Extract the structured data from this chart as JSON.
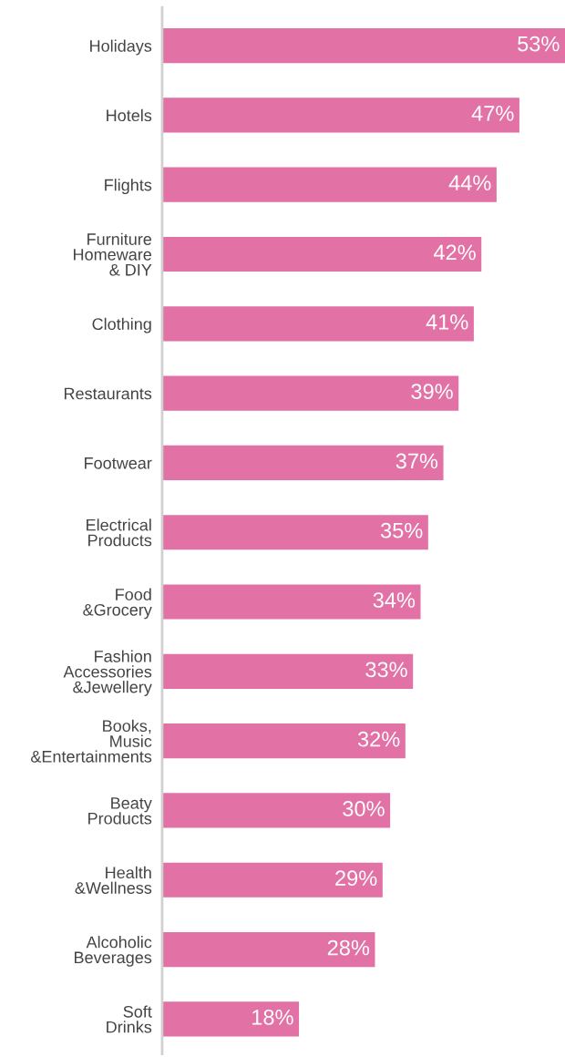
{
  "chart_data": {
    "type": "bar",
    "orientation": "horizontal",
    "categories": [
      "Holidays",
      "Hotels",
      "Flights",
      "Furniture\nHomeware\n& DIY",
      "Clothing",
      "Restaurants",
      "Footwear",
      "Electrical\nProducts",
      "Food\n&Grocery",
      "Fashion\nAccessories\n&Jewellery",
      "Books,\nMusic\n&Entertainments",
      "Beaty\nProducts",
      "Health\n&Wellness",
      "Alcoholic\nBeverages",
      "Soft\nDrinks"
    ],
    "values": [
      53,
      47,
      44,
      42,
      41,
      39,
      37,
      35,
      34,
      33,
      32,
      30,
      29,
      28,
      18
    ],
    "value_labels": [
      "53%",
      "47%",
      "44%",
      "42%",
      "41%",
      "39%",
      "37%",
      "35%",
      "34%",
      "33%",
      "32%",
      "30%",
      "29%",
      "28%",
      "18%"
    ],
    "color": "#e272a5",
    "tick_labels": "y",
    "grid": false,
    "legend": false
  }
}
